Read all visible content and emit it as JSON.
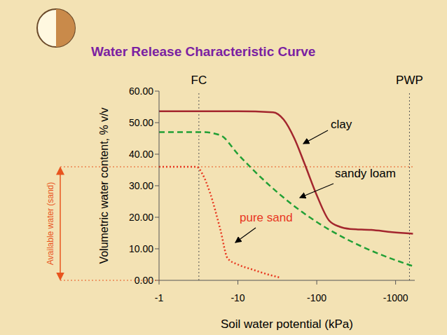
{
  "chart_data": {
    "type": "line",
    "title": "Water Release Characteristic Curve",
    "x_label": "Soil water potential (kPa)",
    "y_label": "Volumetric water content, % v/v",
    "log": "x",
    "grid": false,
    "xlim": [
      -1,
      -1750
    ],
    "xticks": [
      -1,
      -10,
      -100,
      -1000
    ],
    "ylim": [
      0,
      60
    ],
    "yticks": [
      {
        "value": 0,
        "label": "0.00"
      },
      {
        "value": 10,
        "label": "10.00"
      },
      {
        "value": 20,
        "label": "20.00"
      },
      {
        "value": 30,
        "label": "30.00"
      },
      {
        "value": 40,
        "label": "40.00"
      },
      {
        "value": 50,
        "label": "50.00"
      },
      {
        "value": 60,
        "label": "60.00"
      }
    ],
    "series": [
      {
        "name": "clay",
        "color": "#a3262e",
        "line_style": "solid",
        "x": [
          -1,
          -10,
          -28,
          -38,
          -52,
          -70,
          -100,
          -143,
          -195,
          -265,
          -490,
          -900,
          -1660
        ],
        "values": [
          53.6,
          53.6,
          53.3,
          51,
          45,
          37,
          27,
          19,
          17,
          16.3,
          16,
          15.3,
          14.8
        ]
      },
      {
        "name": "sandy loam",
        "color": "#22a036",
        "line_style": "dashed",
        "x": [
          -1,
          -3.6,
          -6,
          -10,
          -23,
          -52,
          -100,
          -265,
          -600,
          -1660
        ],
        "values": [
          47,
          47,
          46,
          40,
          31,
          23.5,
          18.5,
          12.5,
          8.5,
          4.5
        ]
      },
      {
        "name": "pure sand",
        "color": "#e8361e",
        "line_style": "dotted",
        "x": [
          -1,
          -3,
          -3.5,
          -4.4,
          -6,
          -7.4,
          -10,
          -15,
          -23,
          -35
        ],
        "values": [
          36,
          36,
          34,
          28,
          16,
          7,
          5,
          3.5,
          2,
          0.8
        ]
      }
    ],
    "reference_lines": [
      {
        "label": "FC",
        "x": -3.2
      },
      {
        "label": "PWP",
        "x": -1500
      }
    ],
    "available_water": {
      "label": "Available water (sand)",
      "from": 0,
      "to": 36
    }
  }
}
